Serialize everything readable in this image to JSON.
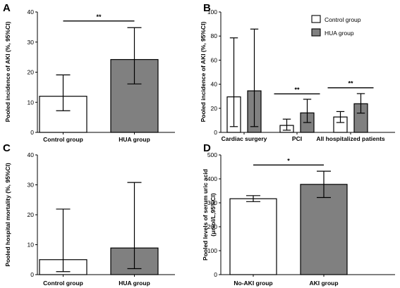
{
  "colors": {
    "control": "#ffffff",
    "hua": "#808080",
    "stroke": "#000000"
  },
  "legend": {
    "entries": [
      "Control group",
      "HUA group"
    ],
    "placement": "top-right of panel B"
  },
  "chart_data": [
    {
      "panel": "A",
      "type": "bar",
      "ylabel": "Pooled incidence of AKI (%, 95%CI)",
      "ylim": [
        0,
        40
      ],
      "yticks": [
        0,
        10,
        20,
        30,
        40
      ],
      "categories": [
        "Control group",
        "HUA group"
      ],
      "values": [
        12.0,
        24.2
      ],
      "ci_low": [
        7.2,
        16.1
      ],
      "ci_high": [
        19.1,
        34.8
      ],
      "fills": [
        "control",
        "hua"
      ],
      "significance": [
        {
          "label": "**",
          "from": 0,
          "to": 1,
          "y": 37
        }
      ]
    },
    {
      "panel": "B",
      "type": "bar",
      "ylabel": "Pooled incidence of AKI (%, 95%CI)",
      "ylim": [
        0,
        100
      ],
      "yticks": [
        0,
        20,
        40,
        60,
        80,
        100
      ],
      "categories": [
        "Cardiac surgery",
        "PCI",
        "All hospitalized patients"
      ],
      "series": [
        {
          "name": "Control group",
          "fill": "control",
          "values": [
            29.5,
            5.8,
            12.8
          ],
          "ci_low": [
            4.8,
            1.8,
            8.2
          ],
          "ci_high": [
            78.5,
            11.0,
            17.3
          ]
        },
        {
          "name": "HUA group",
          "fill": "hua",
          "values": [
            34.5,
            16.2,
            23.8
          ],
          "ci_low": [
            4.8,
            8.2,
            16.0
          ],
          "ci_high": [
            85.8,
            27.5,
            32.2
          ]
        }
      ],
      "significance": [
        {
          "label": "**",
          "category": 1,
          "y": 32
        },
        {
          "label": "**",
          "category": 2,
          "y": 37
        }
      ]
    },
    {
      "panel": "C",
      "type": "bar",
      "ylabel": "Pooled hospital mortality (%, 95%CI)",
      "ylim": [
        0,
        40
      ],
      "yticks": [
        0,
        10,
        20,
        30,
        40
      ],
      "categories": [
        "Control group",
        "HUA group"
      ],
      "values": [
        5.0,
        8.9
      ],
      "ci_low": [
        1.0,
        2.0
      ],
      "ci_high": [
        21.9,
        30.8
      ],
      "fills": [
        "control",
        "hua"
      ],
      "significance": []
    },
    {
      "panel": "D",
      "type": "bar",
      "ylabel": "Pooled levels of serum uric acid (μmol/L,95%CI)",
      "ylabel_lines": [
        "Pooled levels of serum uric acid",
        "(μmol/L,95%CI)"
      ],
      "ylim": [
        0,
        500
      ],
      "yticks": [
        0,
        100,
        200,
        300,
        400,
        500
      ],
      "categories": [
        "No-AKI group",
        "AKI group"
      ],
      "values": [
        317,
        377
      ],
      "ci_low": [
        305,
        322
      ],
      "ci_high": [
        330,
        432
      ],
      "fills": [
        "control",
        "hua"
      ],
      "significance": [
        {
          "label": "*",
          "from": 0,
          "to": 1,
          "y": 458
        }
      ]
    }
  ]
}
